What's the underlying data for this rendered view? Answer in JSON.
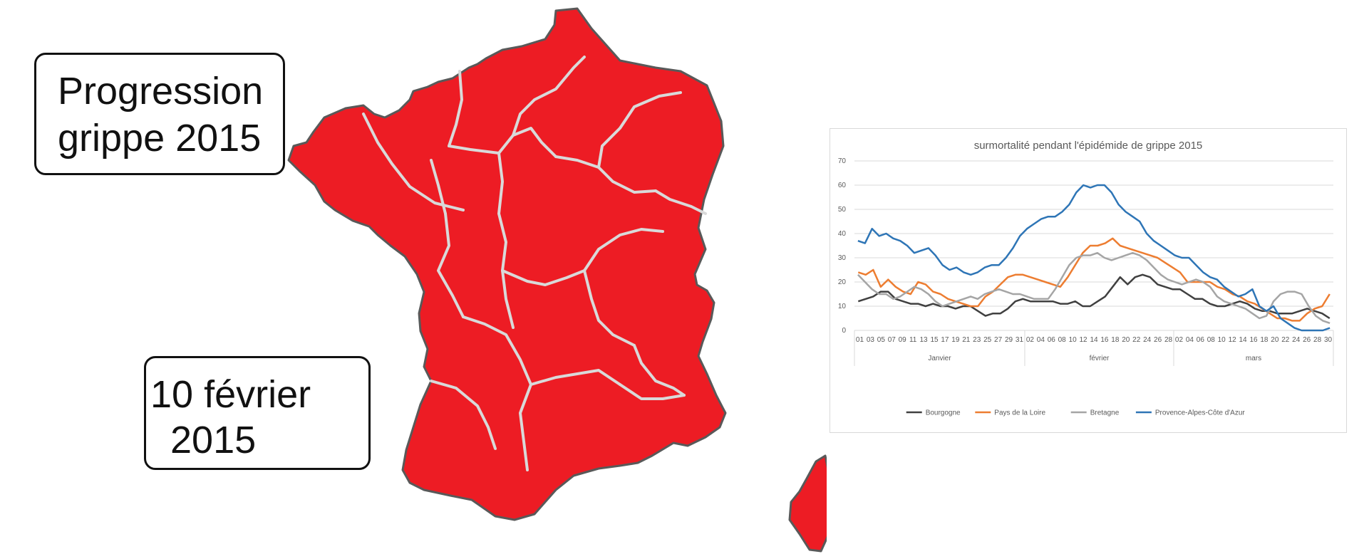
{
  "title": {
    "line1": "Progression",
    "line2": "grippe 2015"
  },
  "date": {
    "line1": "10 février",
    "line2": "2015"
  },
  "map": {
    "fill_color": "#ED1C24",
    "border_color": "#D9D9D9",
    "outline_color": "#595959"
  },
  "chart_data": {
    "type": "line",
    "title": "surmortalité pendant l'épidémide de grippe 2015",
    "ylim": [
      0,
      70
    ],
    "y_ticks": [
      0,
      10,
      20,
      30,
      40,
      50,
      60,
      70
    ],
    "grid": true,
    "legend_position": "bottom",
    "months": [
      {
        "label": "Janvier",
        "days": [
          "01",
          "03",
          "05",
          "07",
          "09",
          "11",
          "13",
          "15",
          "17",
          "19",
          "21",
          "23",
          "25",
          "27",
          "29",
          "31"
        ]
      },
      {
        "label": "février",
        "days": [
          "02",
          "04",
          "06",
          "08",
          "10",
          "12",
          "14",
          "16",
          "18",
          "20",
          "22",
          "24",
          "26",
          "28"
        ]
      },
      {
        "label": "mars",
        "days": [
          "02",
          "04",
          "06",
          "08",
          "10",
          "12",
          "14",
          "16",
          "18",
          "20",
          "22",
          "24",
          "26",
          "28",
          "30"
        ]
      }
    ],
    "series": [
      {
        "name": "Bourgogne",
        "color": "#404040",
        "values": [
          12,
          13,
          14,
          16,
          16,
          13,
          12,
          11,
          11,
          10,
          11,
          10,
          10,
          9,
          10,
          10,
          8,
          6,
          7,
          7,
          9,
          12,
          13,
          12,
          12,
          12,
          12,
          11,
          11,
          12,
          10,
          10,
          12,
          14,
          18,
          22,
          19,
          22,
          23,
          22,
          19,
          18,
          17,
          17,
          15,
          13,
          13,
          11,
          10,
          10,
          11,
          12,
          11,
          9,
          8,
          8,
          7,
          7,
          7,
          8,
          9,
          8,
          7,
          5
        ]
      },
      {
        "name": "Pays de la Loire",
        "color": "#ED7D31",
        "values": [
          24,
          23,
          25,
          18,
          21,
          18,
          16,
          15,
          20,
          19,
          16,
          15,
          13,
          12,
          11,
          10,
          10,
          14,
          16,
          19,
          22,
          23,
          23,
          22,
          21,
          20,
          19,
          18,
          22,
          27,
          32,
          35,
          35,
          36,
          38,
          35,
          34,
          33,
          32,
          31,
          30,
          28,
          26,
          24,
          20,
          20,
          20,
          20,
          18,
          17,
          15,
          14,
          12,
          11,
          9,
          7,
          5,
          5,
          4,
          4,
          7,
          9,
          10,
          15
        ]
      },
      {
        "name": "Bretagne",
        "color": "#A5A5A5",
        "values": [
          23,
          20,
          17,
          15,
          15,
          13,
          14,
          16,
          18,
          17,
          15,
          12,
          10,
          11,
          12,
          13,
          14,
          13,
          15,
          16,
          17,
          16,
          15,
          15,
          14,
          13,
          13,
          13,
          17,
          22,
          27,
          30,
          31,
          31,
          32,
          30,
          29,
          30,
          31,
          32,
          31,
          29,
          26,
          23,
          21,
          20,
          19,
          20,
          21,
          20,
          18,
          14,
          12,
          11,
          10,
          9,
          7,
          5,
          6,
          12,
          15,
          16,
          16,
          15,
          10,
          6,
          4,
          3
        ]
      },
      {
        "name": "Provence-Alpes-Côte d'Azur",
        "color": "#2E75B6",
        "values": [
          37,
          36,
          42,
          39,
          40,
          38,
          37,
          35,
          32,
          33,
          34,
          31,
          27,
          25,
          26,
          24,
          23,
          24,
          26,
          27,
          27,
          30,
          34,
          39,
          42,
          44,
          46,
          47,
          47,
          49,
          52,
          57,
          60,
          59,
          60,
          60,
          57,
          52,
          49,
          47,
          45,
          40,
          37,
          35,
          33,
          31,
          30,
          30,
          27,
          24,
          22,
          21,
          18,
          16,
          14,
          15,
          17,
          10,
          8,
          10,
          5,
          3,
          1,
          0,
          0,
          0,
          0,
          1
        ]
      }
    ]
  }
}
